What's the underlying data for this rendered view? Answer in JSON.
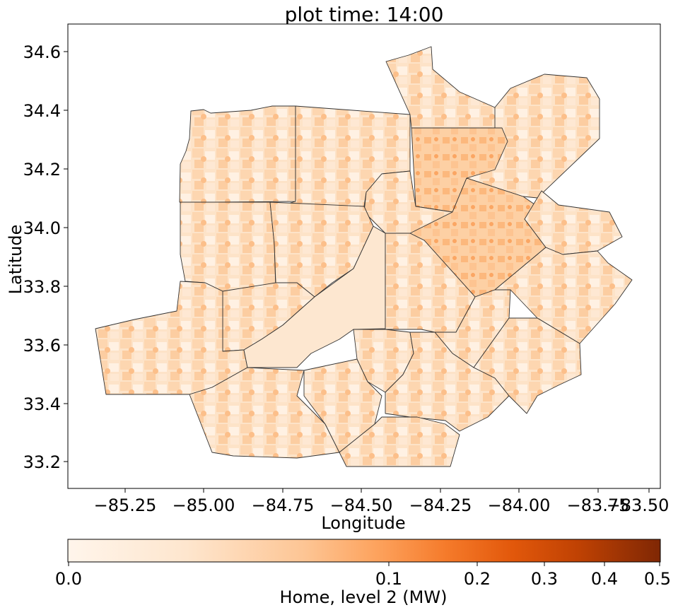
{
  "title": "plot time: 14:00",
  "chart_data": {
    "type": "choropleth-map",
    "title": "plot time: 14:00",
    "xlabel": "Longitude",
    "ylabel": "Latitude",
    "xlim": [
      -85.43,
      -83.46
    ],
    "ylim": [
      33.1,
      34.69
    ],
    "xticks": [
      -85.25,
      -85.0,
      -84.75,
      -84.5,
      -84.25,
      -84.0,
      -83.75,
      -83.5
    ],
    "xtick_labels": [
      "−85.25",
      "−85.00",
      "−84.75",
      "−84.50",
      "−84.25",
      "−84.00",
      "−83.75",
      "−83.50"
    ],
    "yticks": [
      33.2,
      33.4,
      33.6,
      33.8,
      34.0,
      34.2,
      34.4,
      34.6
    ],
    "ytick_labels": [
      "33.2",
      "33.4",
      "33.6",
      "33.8",
      "34.0",
      "34.2",
      "34.4",
      "34.6"
    ],
    "colorbar": {
      "label": "Home, level 2 (MW)",
      "colormap": "Oranges",
      "scale": "power-compressed",
      "range": [
        0.0,
        0.5
      ],
      "ticks": [
        0.0,
        0.1,
        0.2,
        0.3,
        0.4,
        0.5
      ],
      "tick_labels": [
        "0.0",
        "0.1",
        "0.2",
        "0.3",
        "0.4",
        "0.5"
      ],
      "colors": [
        "#fff5eb",
        "#fee6ce",
        "#fdd0a2",
        "#fdae6b",
        "#fd8d3c",
        "#f16913",
        "#d94801",
        "#a63603",
        "#7f2704"
      ]
    }
  }
}
